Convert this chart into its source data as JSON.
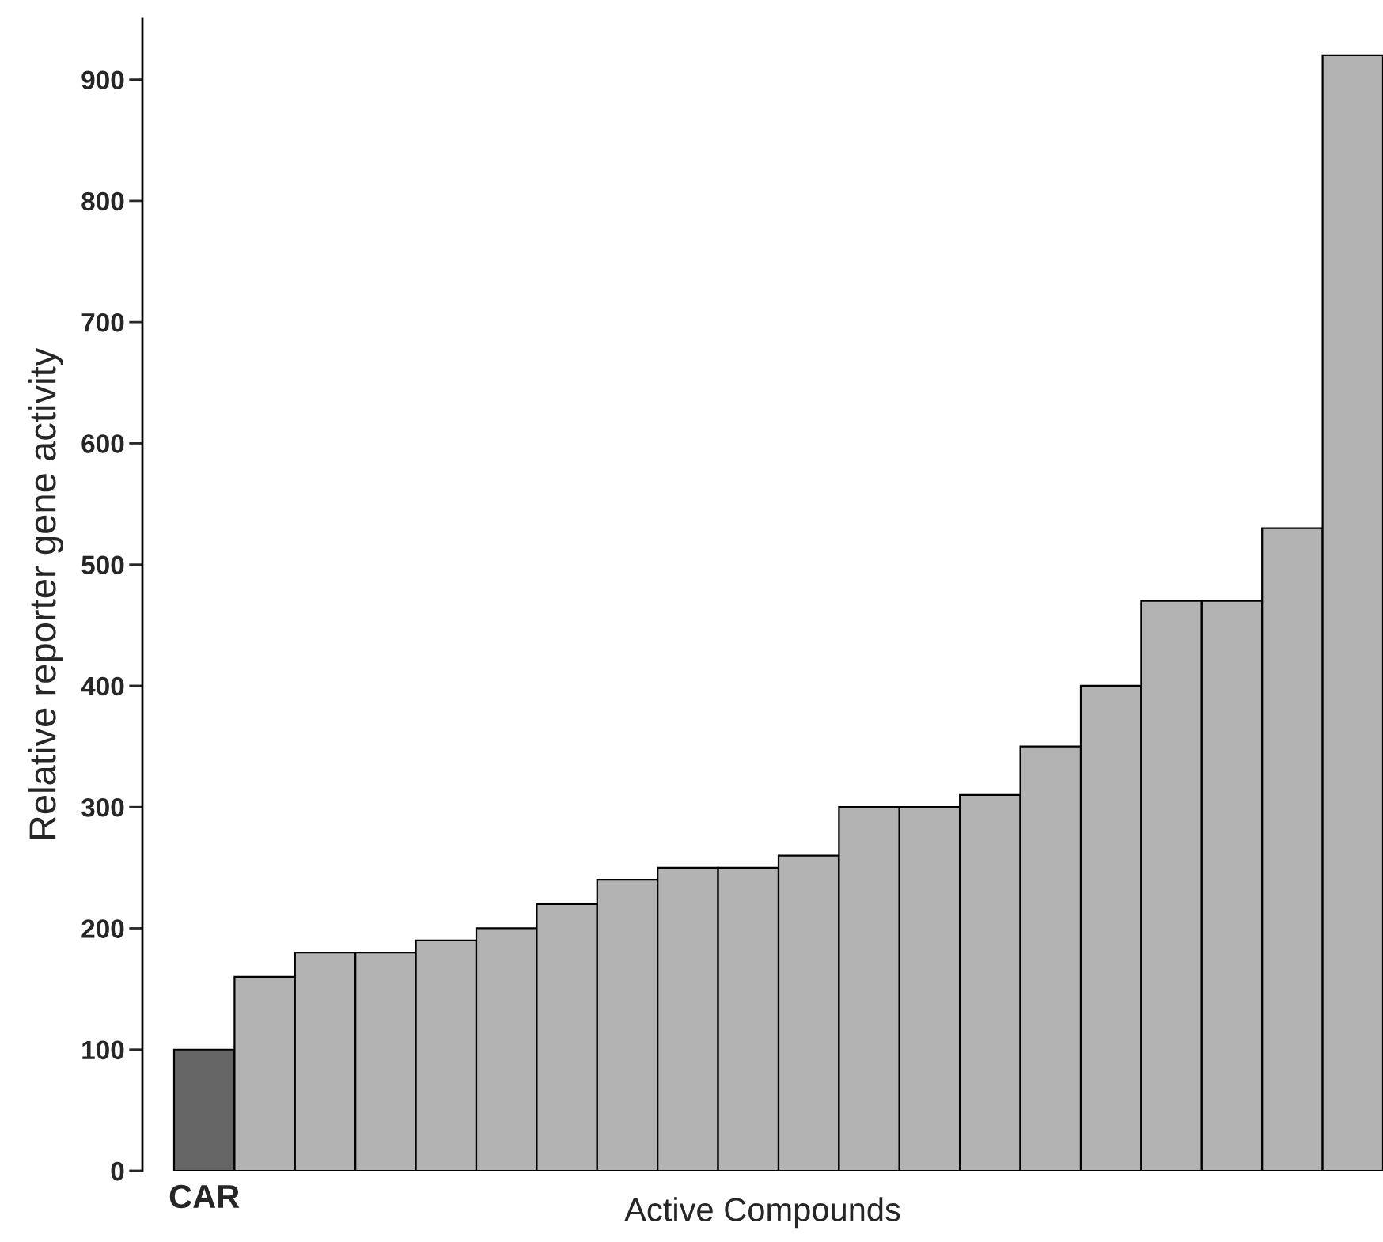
{
  "chart_data": {
    "type": "bar",
    "categories": [
      "CAR",
      null,
      null,
      null,
      null,
      null,
      null,
      null,
      null,
      null,
      null,
      null,
      null,
      null,
      null,
      null,
      null,
      null,
      null,
      null
    ],
    "values": [
      100,
      160,
      180,
      180,
      190,
      200,
      220,
      240,
      250,
      250,
      260,
      300,
      300,
      310,
      350,
      400,
      470,
      470,
      530,
      920
    ],
    "colors": [
      "#666666",
      "#b3b3b3",
      "#b3b3b3",
      "#b3b3b3",
      "#b3b3b3",
      "#b3b3b3",
      "#b3b3b3",
      "#b3b3b3",
      "#b3b3b3",
      "#b3b3b3",
      "#b3b3b3",
      "#b3b3b3",
      "#b3b3b3",
      "#b3b3b3",
      "#b3b3b3",
      "#b3b3b3",
      "#b3b3b3",
      "#b3b3b3",
      "#b3b3b3",
      "#b3b3b3"
    ],
    "xlabel": "Active Compounds",
    "ylabel": "Relative reporter gene activity",
    "ylim": [
      0,
      950
    ],
    "yticks": [
      0,
      100,
      200,
      300,
      400,
      500,
      600,
      700,
      800,
      900
    ],
    "grid": false,
    "legend": false
  }
}
